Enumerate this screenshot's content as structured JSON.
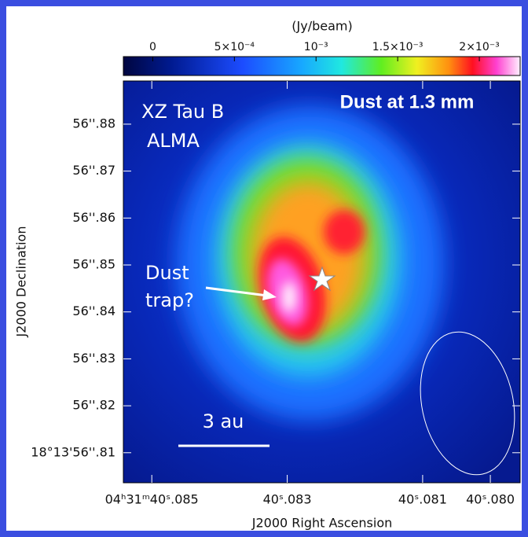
{
  "chart_data": {
    "type": "image",
    "colorbar_label": "(Jy/beam)",
    "clim": [
      -0.00018,
      0.00225
    ],
    "cticks": [
      0,
      {
        "value": 0.0005,
        "label": "5×10⁻⁴"
      },
      {
        "value": 0.001,
        "label": "10⁻³"
      },
      {
        "value": 0.0015,
        "label": "1.5×10⁻³"
      },
      {
        "value": 0.002,
        "label": "2×10⁻³"
      }
    ],
    "x_label": "J2000 Right Ascension",
    "y_label": "J2000 Declination",
    "xlim": [
      40.08542,
      40.07956
    ],
    "xticks": [
      {
        "value": 40.085,
        "label": "04ʰ31ᵐ40ˢ.085"
      },
      {
        "value": 40.083,
        "label": "40ˢ.083"
      },
      {
        "value": 40.081,
        "label": "40ˢ.081"
      },
      {
        "value": 40.08,
        "label": "40ˢ.080"
      }
    ],
    "ylim": [
      56.8036,
      56.8892
    ],
    "yticks": [
      {
        "value": 56.88,
        "label": "56''.88"
      },
      {
        "value": 56.87,
        "label": "56''.87"
      },
      {
        "value": 56.86,
        "label": "56''.86"
      },
      {
        "value": 56.85,
        "label": "56''.85"
      },
      {
        "value": 56.84,
        "label": "56''.84"
      },
      {
        "value": 56.83,
        "label": "56''.83"
      },
      {
        "value": 56.82,
        "label": "56''.82"
      },
      {
        "value": 56.81,
        "label": "18°13'56''.81"
      }
    ],
    "annotations": {
      "source": "XZ Tau B",
      "instrument": "ALMA",
      "band": "Dust at 1.3 mm",
      "trap_1": "Dust",
      "trap_2": "trap?",
      "scale": "3 au"
    }
  }
}
